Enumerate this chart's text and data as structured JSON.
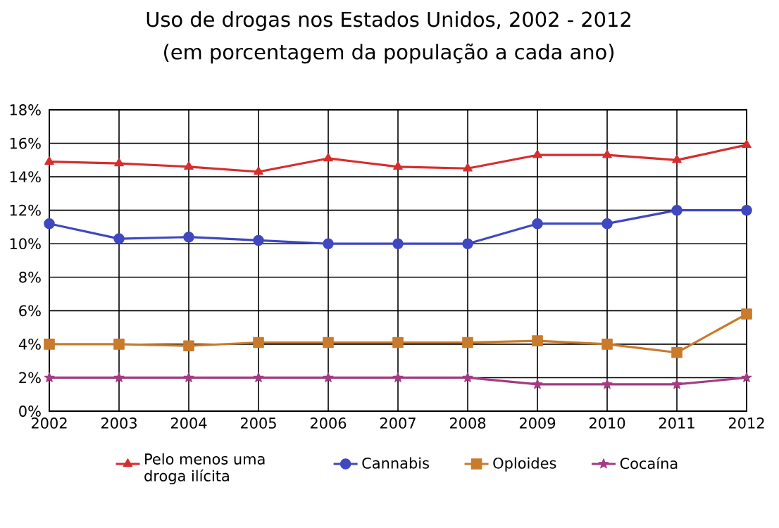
{
  "chart_data": {
    "type": "line",
    "title": "Uso de drogas nos Estados Unidos, 2002 - 2012",
    "subtitle": "(em porcentagem da população a cada ano)",
    "x": [
      2002,
      2003,
      2004,
      2005,
      2006,
      2007,
      2008,
      2009,
      2010,
      2011,
      2012
    ],
    "xlim": [
      2002,
      2012
    ],
    "xticks": [
      2002,
      2003,
      2004,
      2005,
      2006,
      2007,
      2008,
      2009,
      2010,
      2011,
      2012
    ],
    "ylim": [
      0,
      18
    ],
    "yticks": [
      {
        "value": 0,
        "label": "0%"
      },
      {
        "value": 2,
        "label": "2%"
      },
      {
        "value": 4,
        "label": "4%"
      },
      {
        "value": 6,
        "label": "6%"
      },
      {
        "value": 8,
        "label": "8%"
      },
      {
        "value": 10,
        "label": "10%"
      },
      {
        "value": 12,
        "label": "12%"
      },
      {
        "value": 14,
        "label": "14%"
      },
      {
        "value": 16,
        "label": "16%"
      },
      {
        "value": 18,
        "label": "18%"
      }
    ],
    "grid": true,
    "legend": "bottom",
    "line_style": "solid",
    "series": [
      {
        "name": "Pelo menos uma droga ilícita",
        "color": "#d62d2d",
        "marker": "triangle",
        "values": [
          14.9,
          14.8,
          14.6,
          14.3,
          15.1,
          14.6,
          14.5,
          15.3,
          15.3,
          15.0,
          15.9
        ]
      },
      {
        "name": "Cannabis",
        "color": "#3f48c0",
        "marker": "circle",
        "values": [
          11.2,
          10.3,
          10.4,
          10.2,
          10.0,
          10.0,
          10.0,
          11.2,
          11.2,
          12.0,
          12.0
        ]
      },
      {
        "name": "Oploides",
        "color": "#c97a2a",
        "marker": "square",
        "values": [
          4.0,
          4.0,
          3.9,
          4.1,
          4.1,
          4.1,
          4.1,
          4.2,
          4.0,
          3.5,
          5.8
        ]
      },
      {
        "name": "Cocaína",
        "color": "#a23c83",
        "marker": "star",
        "values": [
          2.0,
          2.0,
          2.0,
          2.0,
          2.0,
          2.0,
          2.0,
          1.6,
          1.6,
          1.6,
          2.0
        ]
      }
    ]
  }
}
